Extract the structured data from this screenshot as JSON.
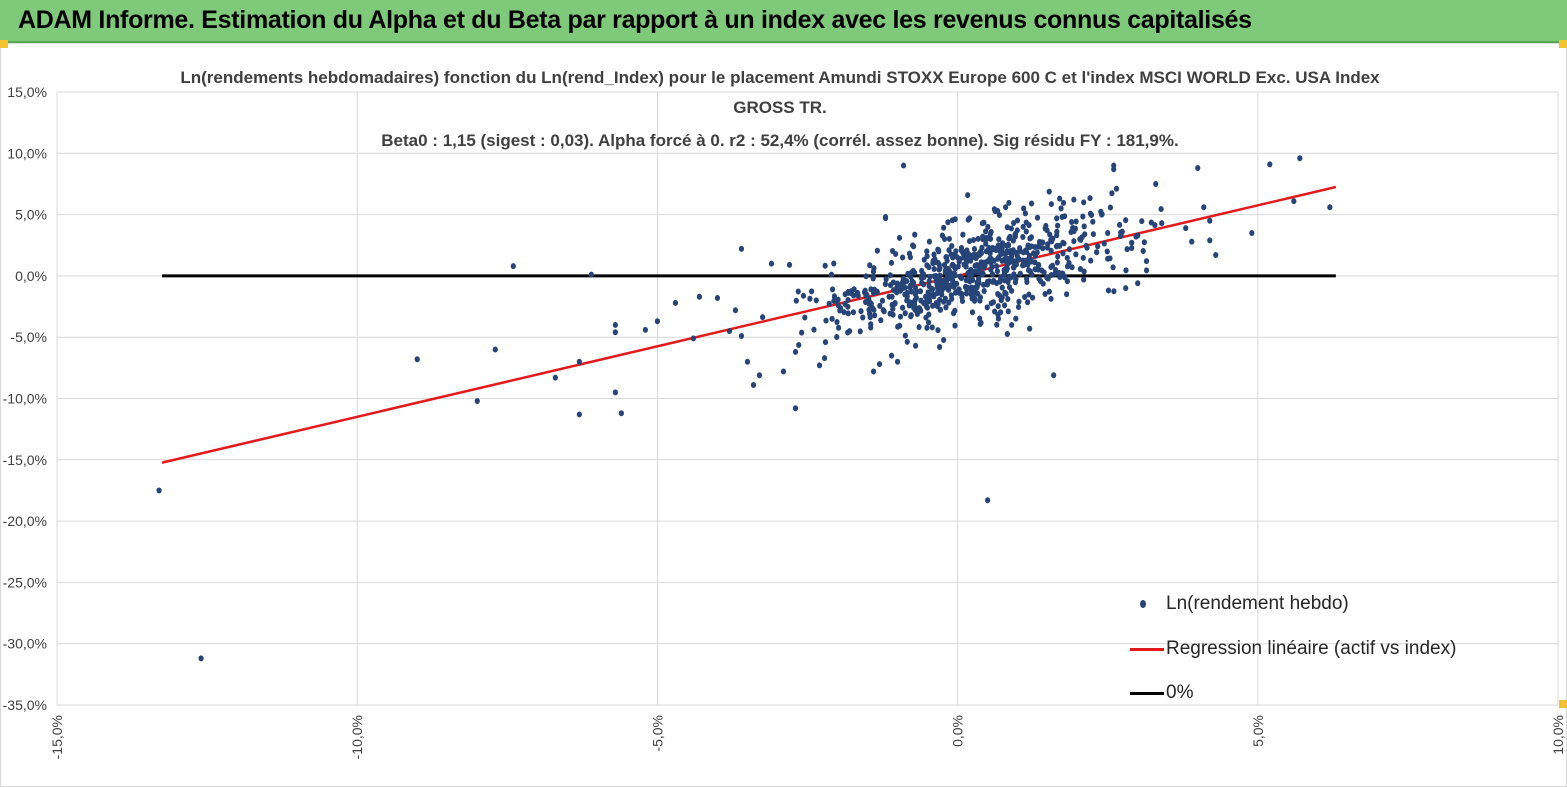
{
  "header": {
    "title": "ADAM Informe. Estimation du Alpha et du Beta par rapport à un index avec les revenus connus capitalisés"
  },
  "colors": {
    "header_bg": "#7fc97a",
    "points": "#264478",
    "regression": "#e31a1c",
    "zero_line": "#000000",
    "grid": "#d9d9d9"
  },
  "chart_data": {
    "type": "scatter",
    "title_lines": [
      "Ln(rendements hebdomadaires) fonction du Ln(rend_Index) pour le placement Amundi STOXX Europe 600 C et l'index MSCI WORLD Exc. USA Index",
      "GROSS TR.",
      "Beta0 : 1,15  (sigest : 0,03).  Alpha forcé à 0. r2 : 52,4% (corrél. assez bonne). Sig résidu FY : 181,9%."
    ],
    "xlabel": "",
    "ylabel": "",
    "xlim": [
      -0.15,
      0.1
    ],
    "ylim": [
      -0.35,
      0.15
    ],
    "x_ticks": [
      -0.15,
      -0.1,
      -0.05,
      0.0,
      0.05,
      0.1
    ],
    "x_tick_labels": [
      "-15,0%",
      "-10,0%",
      "-5,0%",
      "0,0%",
      "5,0%",
      "10,0%"
    ],
    "y_ticks": [
      0.15,
      0.1,
      0.05,
      0.0,
      -0.05,
      -0.1,
      -0.15,
      -0.2,
      -0.25,
      -0.3,
      -0.35
    ],
    "y_tick_labels": [
      "15,0%",
      "10,0%",
      "5,0%",
      "0,0%",
      "-5,0%",
      "-10,0%",
      "-15,0%",
      "-20,0%",
      "-25,0%",
      "-30,0%",
      "-35,0%"
    ],
    "grid": true,
    "legend_position": "bottom-right",
    "series": [
      {
        "name": "Ln(rendement hebdo)",
        "kind": "scatter",
        "generated_cloud": {
          "count": 720,
          "x_mean": 0.002,
          "x_std": 0.012,
          "slope": 1.15,
          "residual_std": 0.018,
          "seed": 7
        },
        "points": [
          [
            -0.133,
            -0.175
          ],
          [
            -0.126,
            -0.312
          ],
          [
            -0.09,
            -0.068
          ],
          [
            -0.08,
            -0.102
          ],
          [
            -0.077,
            -0.06
          ],
          [
            -0.074,
            0.008
          ],
          [
            -0.067,
            -0.083
          ],
          [
            -0.063,
            -0.113
          ],
          [
            -0.063,
            -0.07
          ],
          [
            -0.061,
            0.001
          ],
          [
            -0.057,
            -0.04
          ],
          [
            -0.057,
            -0.046
          ],
          [
            -0.057,
            -0.095
          ],
          [
            -0.056,
            -0.112
          ],
          [
            -0.052,
            -0.044
          ],
          [
            -0.05,
            -0.037
          ],
          [
            -0.047,
            -0.022
          ],
          [
            -0.044,
            -0.051
          ],
          [
            -0.043,
            -0.017
          ],
          [
            -0.04,
            -0.018
          ],
          [
            -0.038,
            -0.045
          ],
          [
            -0.037,
            -0.028
          ],
          [
            -0.036,
            -0.049
          ],
          [
            -0.035,
            -0.07
          ],
          [
            -0.036,
            0.022
          ],
          [
            -0.034,
            -0.089
          ],
          [
            -0.033,
            -0.081
          ],
          [
            -0.031,
            0.01
          ],
          [
            -0.029,
            -0.078
          ],
          [
            -0.028,
            0.009
          ],
          [
            -0.027,
            -0.108
          ],
          [
            -0.027,
            -0.062
          ],
          [
            -0.023,
            -0.073
          ],
          [
            -0.022,
            -0.054
          ],
          [
            -0.021,
            0.001
          ],
          [
            -0.018,
            -0.045
          ],
          [
            -0.014,
            -0.078
          ],
          [
            -0.013,
            -0.072
          ],
          [
            -0.011,
            -0.065
          ],
          [
            -0.01,
            -0.07
          ],
          [
            -0.009,
            0.09
          ],
          [
            -0.012,
            0.047
          ],
          [
            -0.012,
            0.048
          ],
          [
            -0.007,
            -0.057
          ],
          [
            -0.003,
            -0.058
          ],
          [
            0.002,
            0.047
          ],
          [
            0.005,
            -0.183
          ],
          [
            0.016,
            -0.081
          ],
          [
            0.021,
            0.06
          ],
          [
            0.025,
            0.035
          ],
          [
            0.025,
            0.014
          ],
          [
            0.026,
            0.09
          ],
          [
            0.026,
            0.087
          ],
          [
            0.029,
            0.027
          ],
          [
            0.03,
            0.033
          ],
          [
            0.033,
            0.075
          ],
          [
            0.034,
            0.043
          ],
          [
            0.038,
            0.039
          ],
          [
            0.039,
            0.028
          ],
          [
            0.04,
            0.088
          ],
          [
            0.041,
            0.056
          ],
          [
            0.042,
            0.045
          ],
          [
            0.042,
            0.029
          ],
          [
            0.043,
            0.017
          ],
          [
            0.049,
            0.035
          ],
          [
            0.052,
            0.091
          ],
          [
            0.056,
            0.061
          ],
          [
            0.057,
            0.096
          ],
          [
            0.062,
            0.056
          ],
          [
            0.008,
            0.056
          ],
          [
            0.011,
            0.055
          ],
          [
            0.017,
            0.063
          ],
          [
            0.019,
            0.044
          ],
          [
            0.024,
            0.05
          ],
          [
            0.028,
            -0.01
          ],
          [
            0.03,
            -0.006
          ],
          [
            0.021,
            -0.003
          ],
          [
            0.009,
            -0.04
          ],
          [
            0.012,
            -0.043
          ]
        ]
      },
      {
        "name": "Regression linéaire (actif vs index)",
        "kind": "line",
        "x": [
          -0.1325,
          0.063
        ],
        "y": [
          -0.1523,
          0.0725
        ]
      },
      {
        "name": "0%",
        "kind": "line",
        "x": [
          -0.1325,
          0.063
        ],
        "y": [
          0.0,
          0.0
        ]
      }
    ]
  }
}
